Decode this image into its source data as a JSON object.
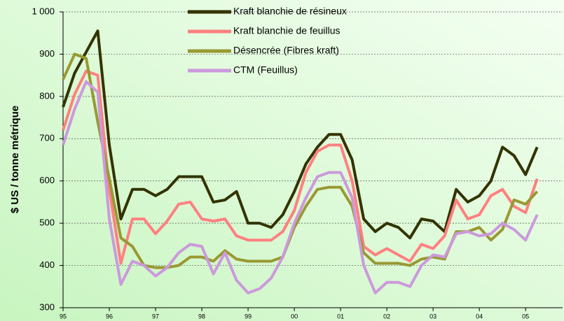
{
  "chart_data": {
    "type": "line",
    "y_label": "$ US / tonne métrique",
    "x": [
      1995,
      1995.25,
      1995.5,
      1995.75,
      1996,
      1996.25,
      1996.5,
      1996.75,
      1997,
      1997.25,
      1997.5,
      1997.75,
      1998,
      1998.25,
      1998.5,
      1998.75,
      1999,
      1999.25,
      1999.5,
      1999.75,
      2000,
      2000.25,
      2000.5,
      2000.75,
      2001,
      2001.25,
      2001.5,
      2001.75,
      2002,
      2002.25,
      2002.5,
      2002.75,
      2003,
      2003.25,
      2003.5,
      2003.75,
      2004,
      2004.25,
      2004.5,
      2004.75,
      2005,
      2005.25
    ],
    "series": [
      {
        "name": "Kraft blanchie de résineux",
        "color": "#333300",
        "values": [
          775,
          855,
          905,
          955,
          685,
          510,
          580,
          580,
          565,
          580,
          610,
          610,
          610,
          550,
          555,
          575,
          500,
          500,
          490,
          520,
          575,
          640,
          680,
          710,
          710,
          650,
          510,
          480,
          500,
          490,
          465,
          510,
          505,
          480,
          580,
          550,
          565,
          600,
          680,
          660,
          615,
          680
        ]
      },
      {
        "name": "Kraft blanchie de feuillus",
        "color": "#ff8080",
        "values": [
          720,
          805,
          860,
          850,
          580,
          405,
          510,
          510,
          475,
          505,
          545,
          550,
          510,
          505,
          510,
          470,
          460,
          460,
          460,
          480,
          530,
          620,
          670,
          685,
          685,
          600,
          445,
          425,
          440,
          425,
          410,
          450,
          440,
          470,
          555,
          510,
          520,
          565,
          580,
          540,
          525,
          605
        ]
      },
      {
        "name": "Désencrée (Fibres kraft)",
        "color": "#999933",
        "values": [
          840,
          900,
          890,
          740,
          605,
          465,
          445,
          400,
          395,
          395,
          400,
          420,
          420,
          410,
          435,
          415,
          410,
          410,
          410,
          420,
          490,
          540,
          580,
          585,
          585,
          540,
          430,
          405,
          405,
          405,
          400,
          415,
          420,
          415,
          480,
          480,
          490,
          460,
          485,
          555,
          545,
          575
        ]
      },
      {
        "name": "CTM (Feuillus)",
        "color": "#cc99dd",
        "values": [
          685,
          770,
          835,
          810,
          510,
          355,
          410,
          400,
          375,
          395,
          430,
          450,
          445,
          380,
          430,
          365,
          335,
          345,
          370,
          420,
          500,
          560,
          610,
          620,
          620,
          560,
          400,
          335,
          360,
          360,
          350,
          400,
          425,
          420,
          475,
          480,
          470,
          475,
          500,
          485,
          460,
          520
        ]
      }
    ],
    "xlim": [
      1995,
      2005.8
    ],
    "xticks": [
      {
        "value": 1995,
        "label": "95"
      },
      {
        "value": 1996,
        "label": "96"
      },
      {
        "value": 1997,
        "label": "97"
      },
      {
        "value": 1998,
        "label": "98"
      },
      {
        "value": 1999,
        "label": "99"
      },
      {
        "value": 2000,
        "label": "00"
      },
      {
        "value": 2001,
        "label": "01"
      },
      {
        "value": 2002,
        "label": "02"
      },
      {
        "value": 2003,
        "label": "03"
      },
      {
        "value": 2004,
        "label": "04"
      },
      {
        "value": 2005,
        "label": "05"
      }
    ],
    "ylim": [
      300,
      1000
    ],
    "yticks": [
      300,
      400,
      500,
      600,
      700,
      800,
      900,
      {
        "value": 1000,
        "label": "1 000"
      }
    ],
    "grid": true,
    "legend": "top"
  }
}
